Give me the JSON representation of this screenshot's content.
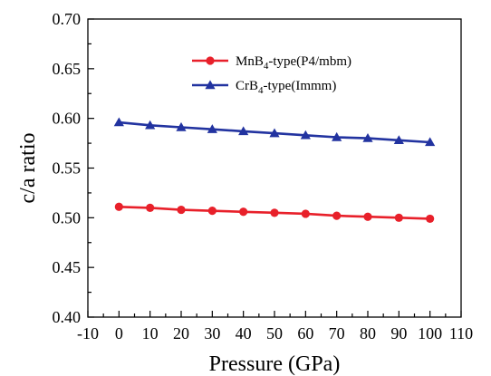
{
  "chart_data": {
    "type": "line",
    "xlabel": "Pressure (GPa)",
    "ylabel": "c/a ratio",
    "xlim": [
      -10,
      110
    ],
    "ylim": [
      0.4,
      0.7
    ],
    "xticks": [
      -10,
      0,
      10,
      20,
      30,
      40,
      50,
      60,
      70,
      80,
      90,
      100,
      110
    ],
    "yticks": [
      0.4,
      0.45,
      0.5,
      0.55,
      0.6,
      0.65,
      0.7
    ],
    "grid": false,
    "legend_position": "top-center",
    "series": [
      {
        "name_main": "MnB",
        "name_sub": "4",
        "name_rest": "-type(P4/mbm)",
        "color": "#e8202a",
        "marker": "circle",
        "x": [
          0,
          10,
          20,
          30,
          40,
          50,
          60,
          70,
          80,
          90,
          100
        ],
        "y": [
          0.511,
          0.51,
          0.508,
          0.507,
          0.506,
          0.505,
          0.504,
          0.502,
          0.501,
          0.5,
          0.499
        ]
      },
      {
        "name_main": "CrB",
        "name_sub": "4",
        "name_rest": "-type(Immm)",
        "color": "#2233a0",
        "marker": "triangle",
        "x": [
          0,
          10,
          20,
          30,
          40,
          50,
          60,
          70,
          80,
          90,
          100
        ],
        "y": [
          0.596,
          0.593,
          0.591,
          0.589,
          0.587,
          0.585,
          0.583,
          0.581,
          0.58,
          0.578,
          0.576
        ]
      }
    ]
  }
}
